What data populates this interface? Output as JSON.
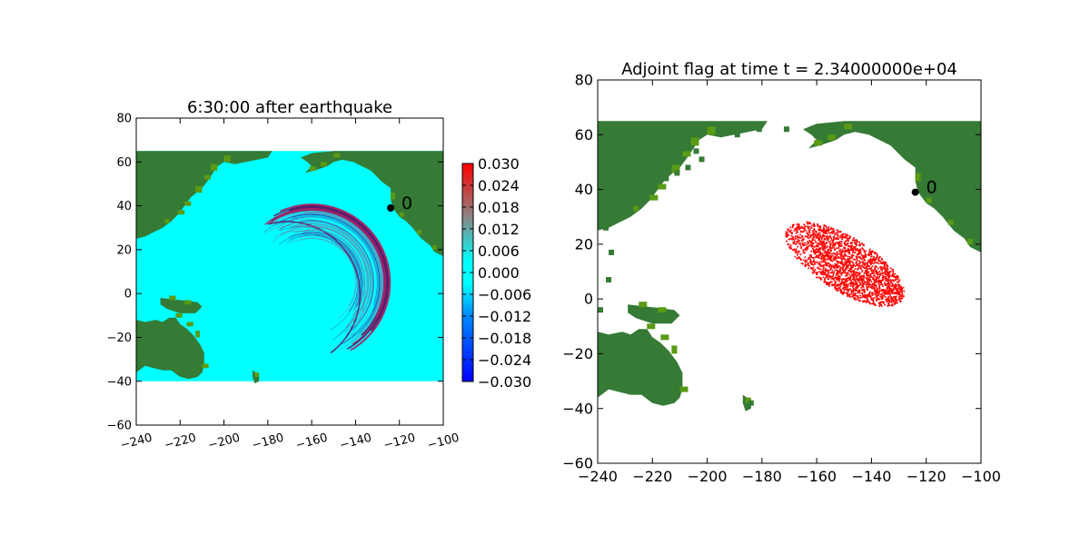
{
  "chart_data": [
    {
      "type": "heatmap",
      "title": "6:30:00 after earthquake",
      "xlim": [
        -240,
        -100
      ],
      "ylim": [
        -60,
        80
      ],
      "xticks": [
        "−240",
        "−220",
        "−200",
        "−180",
        "−160",
        "−140",
        "−120",
        "−100"
      ],
      "yticks": [
        "−60",
        "−40",
        "−20",
        "0",
        "20",
        "40",
        "60",
        "80"
      ],
      "ocean_extent": {
        "x": [
          -240,
          -100
        ],
        "y": [
          -40,
          65
        ]
      },
      "colorbar": {
        "range": [
          -0.03,
          0.03
        ],
        "ticks": [
          "0.030",
          "0.024",
          "0.018",
          "0.012",
          "0.006",
          "0.000",
          "−0.006",
          "−0.012",
          "−0.018",
          "−0.024",
          "−0.030"
        ]
      },
      "wave_front": {
        "center": [
          -160,
          5
        ],
        "radii_deg": [
          20,
          36
        ],
        "arc_start_deg": 95,
        "arc_end_deg": 345
      },
      "marker": {
        "x": -124,
        "y": 39,
        "label": "0"
      },
      "colors": {
        "land": "#357a35",
        "land_light": "#5a9a15",
        "ocean": "#00ffff"
      }
    },
    {
      "type": "heatmap",
      "title": "Adjoint flag at time t = 2.34000000e+04",
      "xlim": [
        -240,
        -100
      ],
      "ylim": [
        -60,
        80
      ],
      "xticks": [
        "−240",
        "−220",
        "−200",
        "−180",
        "−160",
        "−140",
        "−120",
        "−100"
      ],
      "yticks": [
        "−60",
        "−40",
        "−20",
        "0",
        "20",
        "40",
        "60",
        "80"
      ],
      "flag_region": {
        "x": [
          -178,
          -126
        ],
        "y": [
          -6,
          30
        ]
      },
      "marker": {
        "x": -124,
        "y": 39,
        "label": "0"
      },
      "colors": {
        "land": "#357a35",
        "land_light": "#5a9a15",
        "flag": "#ff0000"
      }
    }
  ]
}
